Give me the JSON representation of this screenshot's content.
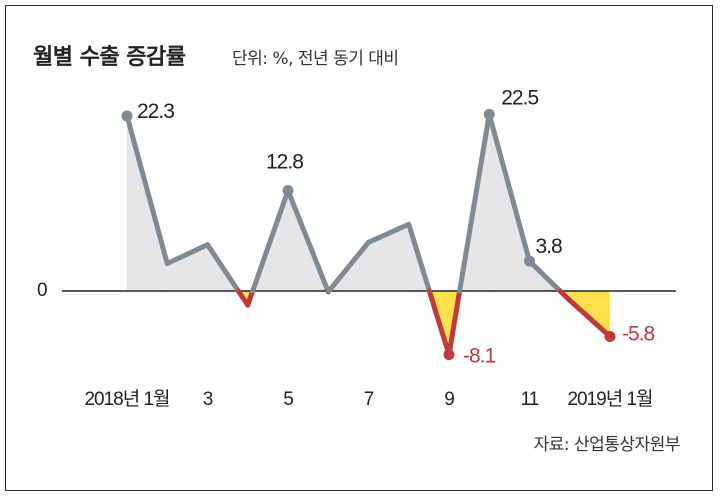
{
  "header": {
    "title": "월별 수출 증감률",
    "subtitle": "단위: %, 전년 동기 대비"
  },
  "footer": {
    "source": "자료: 산업통상자원부"
  },
  "y_zero_label": "0",
  "colors": {
    "positive_line": "#7f8a93",
    "negative_line": "#c0393b",
    "positive_fill": "#e6e6e8",
    "negative_fill": "#ffe04d",
    "axis": "#222222",
    "neg_label": "#c0393b"
  },
  "chart_data": {
    "type": "line",
    "title": "월별 수출 증감률",
    "subtitle": "단위: %, 전년 동기 대비",
    "x": [
      "2018-01",
      "2018-02",
      "2018-03",
      "2018-04",
      "2018-05",
      "2018-06",
      "2018-07",
      "2018-08",
      "2018-09",
      "2018-10",
      "2018-11",
      "2018-12",
      "2019-01"
    ],
    "values": [
      22.3,
      3.5,
      5.9,
      -1.8,
      12.8,
      -0.1,
      6.2,
      8.5,
      -8.1,
      22.5,
      3.8,
      -1.2,
      -5.8
    ],
    "tick_labels": [
      {
        "index": 0,
        "text": "2018년 1월"
      },
      {
        "index": 2,
        "text": "3"
      },
      {
        "index": 4,
        "text": "5"
      },
      {
        "index": 6,
        "text": "7"
      },
      {
        "index": 8,
        "text": "9"
      },
      {
        "index": 10,
        "text": "11"
      },
      {
        "index": 12,
        "text": "2019년 1월"
      }
    ],
    "data_labels": [
      {
        "index": 0,
        "text": "22.3"
      },
      {
        "index": 4,
        "text": "12.8"
      },
      {
        "index": 8,
        "text": "-8.1"
      },
      {
        "index": 9,
        "text": "22.5"
      },
      {
        "index": 10,
        "text": "3.8"
      },
      {
        "index": 12,
        "text": "-5.8"
      }
    ],
    "ylim": [
      -10,
      25
    ],
    "zero_line": true,
    "grid": false,
    "legend": "none"
  }
}
